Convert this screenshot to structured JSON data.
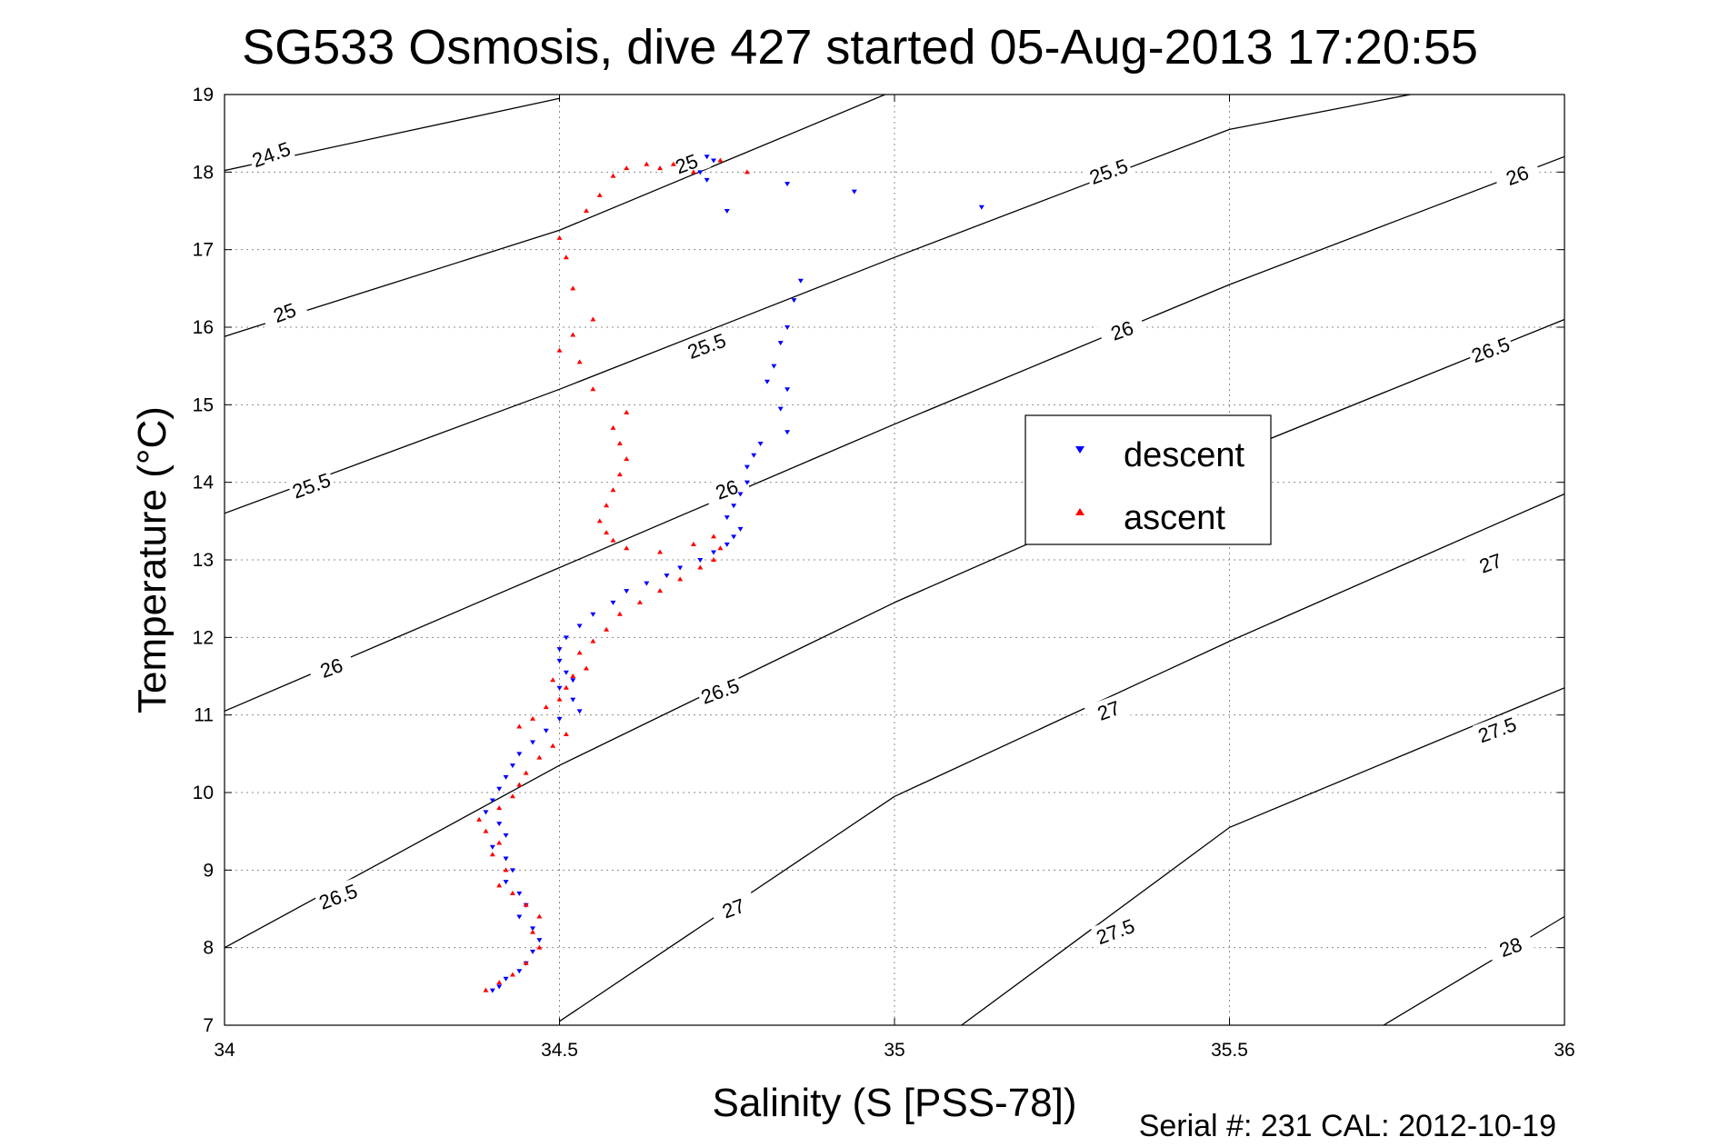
{
  "chart_data": {
    "type": "scatter",
    "title": "SG533 Osmosis, dive 427 started 05-Aug-2013 17:20:55",
    "xlabel": "Salinity (S [PSS-78])",
    "ylabel": "Temperature (°C)",
    "xlim": [
      34,
      36
    ],
    "ylim": [
      7,
      19
    ],
    "x_ticks": [
      "34",
      "34.5",
      "35",
      "35.5",
      "36"
    ],
    "y_ticks": [
      "7",
      "8",
      "9",
      "10",
      "11",
      "12",
      "13",
      "14",
      "15",
      "16",
      "17",
      "18",
      "19"
    ],
    "grid": true,
    "legend_position": "center-right",
    "footer": "Serial #: 231  CAL: 2012-10-19",
    "contours": [
      {
        "label": "24.5",
        "points": [
          [
            34,
            18.02
          ],
          [
            34.5,
            18.95
          ]
        ],
        "label_at": [
          34.07,
          18.22
        ]
      },
      {
        "label": "25",
        "points": [
          [
            34,
            15.88
          ],
          [
            34.5,
            17.25
          ],
          [
            35,
            19.05
          ]
        ],
        "label_at": [
          34.09,
          16.18
        ],
        "label2": "25",
        "label2_at": [
          34.69,
          18.1
        ]
      },
      {
        "label": "25.5",
        "points": [
          [
            34,
            13.6
          ],
          [
            34.5,
            15.2
          ],
          [
            35,
            16.9
          ],
          [
            35.5,
            18.55
          ],
          [
            35.8,
            19.05
          ]
        ],
        "label_at": [
          34.13,
          13.95
        ],
        "label2": "25.5",
        "label2_at": [
          34.72,
          15.75
        ],
        "label3": "25.5",
        "label3_at": [
          35.32,
          18.0
        ]
      },
      {
        "label": "26",
        "points": [
          [
            34,
            11.05
          ],
          [
            34.5,
            12.9
          ],
          [
            35,
            14.75
          ],
          [
            35.5,
            16.55
          ],
          [
            36,
            18.2
          ]
        ],
        "label_at": [
          34.16,
          11.6
        ],
        "label2": "26",
        "label2_at": [
          34.75,
          13.9
        ],
        "label3": "26",
        "label3_at": [
          35.34,
          15.95
        ],
        "label4": "26",
        "label4_at": [
          35.93,
          17.95
        ]
      },
      {
        "label": "26.5",
        "points": [
          [
            34,
            8.0
          ],
          [
            34.5,
            10.35
          ],
          [
            35,
            12.45
          ],
          [
            35.5,
            14.35
          ],
          [
            36,
            16.1
          ]
        ],
        "label_at": [
          34.17,
          8.65
        ],
        "label2": "26.5",
        "label2_at": [
          34.74,
          11.3
        ],
        "label3": "26.5",
        "label3_at": [
          35.89,
          15.7
        ]
      },
      {
        "label": "27",
        "points": [
          [
            34.5,
            7.05
          ],
          [
            35,
            9.95
          ],
          [
            35.5,
            11.95
          ],
          [
            36,
            13.85
          ]
        ],
        "label_at": [
          34.76,
          8.5
        ],
        "label2": "27",
        "label2_at": [
          35.32,
          11.05
        ],
        "label3": "27",
        "label3_at": [
          35.89,
          12.95
        ]
      },
      {
        "label": "27.5",
        "points": [
          [
            35.1,
            7.0
          ],
          [
            35.5,
            9.55
          ],
          [
            36,
            11.35
          ]
        ],
        "label_at": [
          35.33,
          8.2
        ],
        "label2": "27.5",
        "label2_at": [
          35.9,
          10.8
        ]
      },
      {
        "label": "28",
        "points": [
          [
            35.73,
            7.0
          ],
          [
            36,
            8.4
          ]
        ],
        "label_at": [
          35.92,
          8.0
        ]
      }
    ],
    "series": [
      {
        "name": "descent",
        "color": "#0000ff",
        "marker": "triangle-down",
        "points": [
          [
            34.72,
            18.2
          ],
          [
            34.73,
            18.15
          ],
          [
            34.71,
            18.0
          ],
          [
            34.72,
            17.9
          ],
          [
            34.75,
            17.5
          ],
          [
            34.84,
            17.85
          ],
          [
            34.94,
            17.75
          ],
          [
            35.13,
            17.55
          ],
          [
            34.86,
            16.6
          ],
          [
            34.85,
            16.35
          ],
          [
            34.84,
            16.0
          ],
          [
            34.83,
            15.8
          ],
          [
            34.82,
            15.5
          ],
          [
            34.81,
            15.3
          ],
          [
            34.84,
            15.2
          ],
          [
            34.83,
            14.95
          ],
          [
            34.84,
            14.65
          ],
          [
            34.8,
            14.5
          ],
          [
            34.79,
            14.35
          ],
          [
            34.78,
            14.2
          ],
          [
            34.78,
            14.0
          ],
          [
            34.77,
            13.85
          ],
          [
            34.76,
            13.7
          ],
          [
            34.75,
            13.55
          ],
          [
            34.77,
            13.4
          ],
          [
            34.76,
            13.3
          ],
          [
            34.75,
            13.2
          ],
          [
            34.73,
            13.1
          ],
          [
            34.71,
            13.0
          ],
          [
            34.68,
            12.9
          ],
          [
            34.66,
            12.8
          ],
          [
            34.63,
            12.7
          ],
          [
            34.6,
            12.6
          ],
          [
            34.58,
            12.45
          ],
          [
            34.55,
            12.3
          ],
          [
            34.53,
            12.15
          ],
          [
            34.51,
            12.0
          ],
          [
            34.5,
            11.85
          ],
          [
            34.5,
            11.7
          ],
          [
            34.51,
            11.55
          ],
          [
            34.52,
            11.45
          ],
          [
            34.5,
            11.35
          ],
          [
            34.52,
            11.2
          ],
          [
            34.53,
            11.05
          ],
          [
            34.5,
            10.95
          ],
          [
            34.48,
            10.8
          ],
          [
            34.46,
            10.65
          ],
          [
            34.44,
            10.5
          ],
          [
            34.43,
            10.35
          ],
          [
            34.42,
            10.2
          ],
          [
            34.41,
            10.05
          ],
          [
            34.4,
            9.9
          ],
          [
            34.39,
            9.75
          ],
          [
            34.41,
            9.6
          ],
          [
            34.42,
            9.45
          ],
          [
            34.4,
            9.3
          ],
          [
            34.42,
            9.15
          ],
          [
            34.43,
            9.0
          ],
          [
            34.42,
            8.85
          ],
          [
            34.44,
            8.7
          ],
          [
            34.45,
            8.55
          ],
          [
            34.44,
            8.4
          ],
          [
            34.46,
            8.25
          ],
          [
            34.47,
            8.1
          ],
          [
            34.46,
            7.95
          ],
          [
            34.45,
            7.8
          ],
          [
            34.44,
            7.7
          ],
          [
            34.42,
            7.6
          ],
          [
            34.41,
            7.5
          ],
          [
            34.4,
            7.45
          ]
        ]
      },
      {
        "name": "ascent",
        "color": "#ff0000",
        "marker": "triangle-up",
        "points": [
          [
            34.39,
            7.45
          ],
          [
            34.41,
            7.55
          ],
          [
            34.43,
            7.65
          ],
          [
            34.45,
            7.8
          ],
          [
            34.47,
            8.0
          ],
          [
            34.46,
            8.2
          ],
          [
            34.47,
            8.4
          ],
          [
            34.45,
            8.55
          ],
          [
            34.43,
            8.7
          ],
          [
            34.41,
            8.8
          ],
          [
            34.42,
            9.0
          ],
          [
            34.4,
            9.2
          ],
          [
            34.41,
            9.35
          ],
          [
            34.39,
            9.5
          ],
          [
            34.38,
            9.65
          ],
          [
            34.41,
            9.8
          ],
          [
            34.43,
            9.95
          ],
          [
            34.44,
            10.1
          ],
          [
            34.45,
            10.25
          ],
          [
            34.47,
            10.45
          ],
          [
            34.49,
            10.6
          ],
          [
            34.51,
            10.75
          ],
          [
            34.44,
            10.85
          ],
          [
            34.46,
            10.95
          ],
          [
            34.48,
            11.1
          ],
          [
            34.5,
            11.2
          ],
          [
            34.51,
            11.35
          ],
          [
            34.49,
            11.45
          ],
          [
            34.52,
            11.5
          ],
          [
            34.54,
            11.6
          ],
          [
            34.53,
            11.8
          ],
          [
            34.55,
            11.95
          ],
          [
            34.57,
            12.1
          ],
          [
            34.59,
            12.3
          ],
          [
            34.62,
            12.45
          ],
          [
            34.65,
            12.6
          ],
          [
            34.68,
            12.75
          ],
          [
            34.71,
            12.9
          ],
          [
            34.73,
            13.0
          ],
          [
            34.74,
            13.15
          ],
          [
            34.73,
            13.3
          ],
          [
            34.7,
            13.2
          ],
          [
            34.65,
            13.1
          ],
          [
            34.6,
            13.15
          ],
          [
            34.58,
            13.25
          ],
          [
            34.57,
            13.35
          ],
          [
            34.56,
            13.5
          ],
          [
            34.57,
            13.7
          ],
          [
            34.58,
            13.9
          ],
          [
            34.59,
            14.1
          ],
          [
            34.6,
            14.3
          ],
          [
            34.59,
            14.5
          ],
          [
            34.58,
            14.7
          ],
          [
            34.6,
            14.9
          ],
          [
            34.55,
            15.2
          ],
          [
            34.53,
            15.55
          ],
          [
            34.5,
            15.7
          ],
          [
            34.52,
            15.9
          ],
          [
            34.55,
            16.1
          ],
          [
            34.52,
            16.5
          ],
          [
            34.51,
            16.9
          ],
          [
            34.5,
            17.15
          ],
          [
            34.54,
            17.5
          ],
          [
            34.56,
            17.7
          ],
          [
            34.58,
            17.95
          ],
          [
            34.6,
            18.05
          ],
          [
            34.63,
            18.1
          ],
          [
            34.65,
            18.05
          ],
          [
            34.67,
            18.1
          ],
          [
            34.7,
            18.0
          ],
          [
            34.74,
            18.15
          ],
          [
            34.78,
            18.0
          ]
        ]
      }
    ]
  }
}
